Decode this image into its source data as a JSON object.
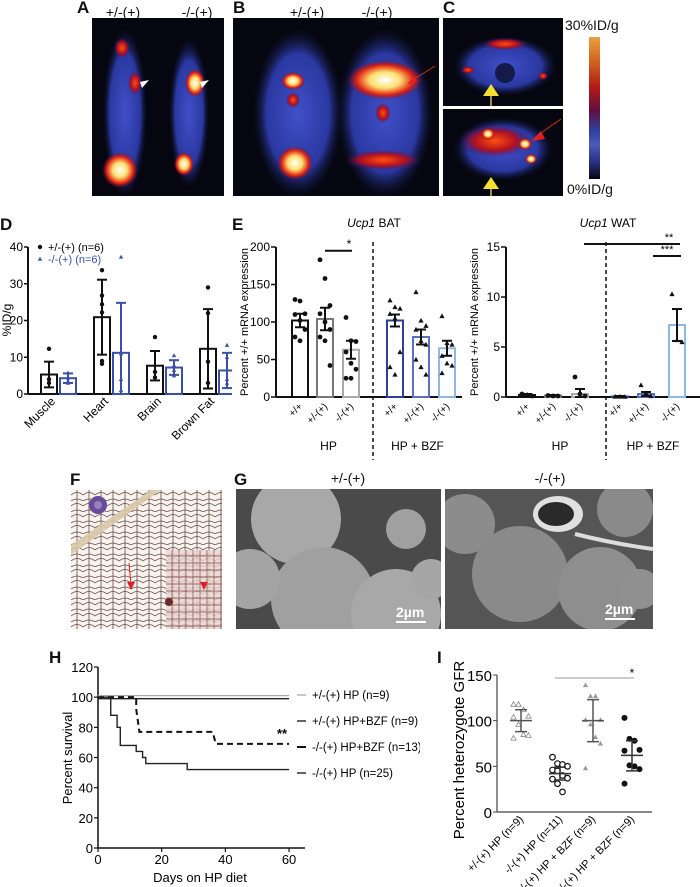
{
  "panels": {
    "A": {
      "label": "A",
      "groups": [
        "+/-(+)",
        "-/-(+)"
      ]
    },
    "B": {
      "label": "B",
      "groups": [
        "+/-(+)",
        "-/-(+)"
      ]
    },
    "C": {
      "label": "C",
      "scale_max": "30%ID/g",
      "scale_min": "0%ID/g"
    },
    "D": {
      "label": "D"
    },
    "E": {
      "label": "E"
    },
    "F": {
      "label": "F"
    },
    "G": {
      "label": "G",
      "groups": [
        "+/-(+)",
        "-/-(+)"
      ],
      "scalebar": "2µm"
    },
    "H": {
      "label": "H"
    },
    "I": {
      "label": "I"
    }
  },
  "chart_data": [
    {
      "id": "D",
      "type": "bar",
      "title": "",
      "xlabel": "",
      "ylabel": "%ID/g",
      "ylim": [
        0,
        40
      ],
      "yticks": [
        0,
        10,
        20,
        30,
        40
      ],
      "categories": [
        "Muscle",
        "Heart",
        "Brain",
        "Brown Fat"
      ],
      "legend": [
        "+/-(+) (n=6)",
        "-/-(+) (n=6)"
      ],
      "series": [
        {
          "name": "+/-(+) (n=6)",
          "color": "#111111",
          "values": [
            5.3,
            20.9,
            7.7,
            12.3
          ],
          "err": [
            3.5,
            10.2,
            4.0,
            10.8
          ]
        },
        {
          "name": "-/-(+) (n=6)",
          "color": "#3a4fa8",
          "values": [
            4.3,
            11.2,
            7.2,
            6.4
          ],
          "err": [
            1.3,
            13.6,
            2.0,
            4.8
          ]
        }
      ]
    },
    {
      "id": "E-BAT",
      "type": "bar",
      "title": "Ucp1 BAT",
      "title_italic": "Ucp1",
      "title_rest": " BAT",
      "ylabel": "Percent +/+ mRNA expression",
      "ylim": [
        0,
        200
      ],
      "yticks": [
        0,
        50,
        100,
        150,
        200
      ],
      "categories": [
        "+/+",
        "+/-(+)",
        "-/-(+)",
        "+/+",
        "+/-(+)",
        "-/-(+)"
      ],
      "groups": [
        "HP",
        "HP + BZF"
      ],
      "colors": [
        "#111111",
        "#777777",
        "#aaaaaa",
        "#2f3f9a",
        "#5a70c0",
        "#8fb8e6"
      ],
      "values": [
        102,
        104,
        63,
        102,
        80,
        65
      ],
      "err": [
        9,
        15,
        12,
        8,
        10,
        10
      ],
      "significance": [
        {
          "from": 1,
          "to": 2,
          "label": "*"
        }
      ]
    },
    {
      "id": "E-WAT",
      "type": "bar",
      "title": "Ucp1 WAT",
      "title_italic": "Ucp1",
      "title_rest": " WAT",
      "ylabel": "Percent +/+ mRNA expression",
      "ylim": [
        0,
        15
      ],
      "yticks": [
        0,
        5,
        10,
        15
      ],
      "categories": [
        "+/+",
        "+/-(+)",
        "-/-(+)",
        "+/+",
        "+/-(+)",
        "-/-(+)"
      ],
      "groups": [
        "HP",
        "HP + BZF"
      ],
      "colors": [
        "#111111",
        "#777777",
        "#aaaaaa",
        "#2f3f9a",
        "#5a70c0",
        "#8fb8e6"
      ],
      "values": [
        0.2,
        0.15,
        0.3,
        0.05,
        0.3,
        7.2
      ],
      "err": [
        0.1,
        0.05,
        0.5,
        0.05,
        0.2,
        1.6
      ],
      "significance": [
        {
          "from": 0,
          "to": 5,
          "label": "**"
        },
        {
          "from": 4,
          "to": 5,
          "label": "***"
        }
      ]
    },
    {
      "id": "H",
      "type": "line",
      "title": "",
      "xlabel": "Days on HP diet",
      "ylabel": "Percent survival",
      "xlim": [
        0,
        65
      ],
      "ylim": [
        0,
        120
      ],
      "xticks": [
        0,
        20,
        40,
        60
      ],
      "yticks": [
        0,
        20,
        40,
        60,
        80,
        100,
        120
      ],
      "annotation": "**",
      "series": [
        {
          "name": "+/-(+) HP (n=9)",
          "style": "solid-light",
          "x": [
            0,
            60
          ],
          "y": [
            101,
            101
          ]
        },
        {
          "name": "+/-(+) HP+BZF (n=9)",
          "style": "solid",
          "x": [
            0,
            60
          ],
          "y": [
            99,
            99
          ]
        },
        {
          "name": "-/-(+) HP+BZF (n=13)",
          "style": "dashed",
          "x": [
            0,
            12,
            12,
            13,
            36,
            37,
            60
          ],
          "y": [
            100,
            100,
            92,
            77,
            77,
            69,
            69
          ]
        },
        {
          "name": "-/-(+) HP (n=25)",
          "style": "solid",
          "x": [
            0,
            4,
            4,
            6,
            6,
            7,
            7,
            12,
            12,
            14,
            14,
            15,
            15,
            28,
            28,
            60
          ],
          "y": [
            100,
            100,
            88,
            88,
            80,
            80,
            68,
            68,
            64,
            64,
            60,
            60,
            56,
            56,
            52,
            52
          ]
        }
      ]
    },
    {
      "id": "I",
      "type": "scatter",
      "title": "",
      "ylabel": "Percent heterozygote GFR",
      "ylim": [
        0,
        150
      ],
      "yticks": [
        0,
        50,
        100,
        150
      ],
      "categories": [
        "+/-(+) HP (n=9)",
        "-/-(+) HP (n=11)",
        "+/-(+) HP + BZF (n=9)",
        "-/-(+) HP + BZF (n=9)"
      ],
      "means": [
        100,
        42,
        100,
        62
      ],
      "sd_low": [
        88,
        35,
        77,
        45
      ],
      "sd_high": [
        112,
        49,
        123,
        78
      ],
      "points": [
        [
          118,
          118,
          112,
          105,
          104,
          96,
          85,
          84,
          81
        ],
        [
          60,
          53,
          52,
          50,
          46,
          45,
          40,
          37,
          36,
          31,
          22
        ],
        [
          139,
          127,
          127,
          101,
          101,
          96,
          82,
          75,
          48
        ],
        [
          103,
          80,
          78,
          68,
          67,
          51,
          50,
          47,
          31
        ]
      ],
      "significance": [
        {
          "from": 1,
          "to": 3,
          "label": "*"
        }
      ]
    }
  ]
}
